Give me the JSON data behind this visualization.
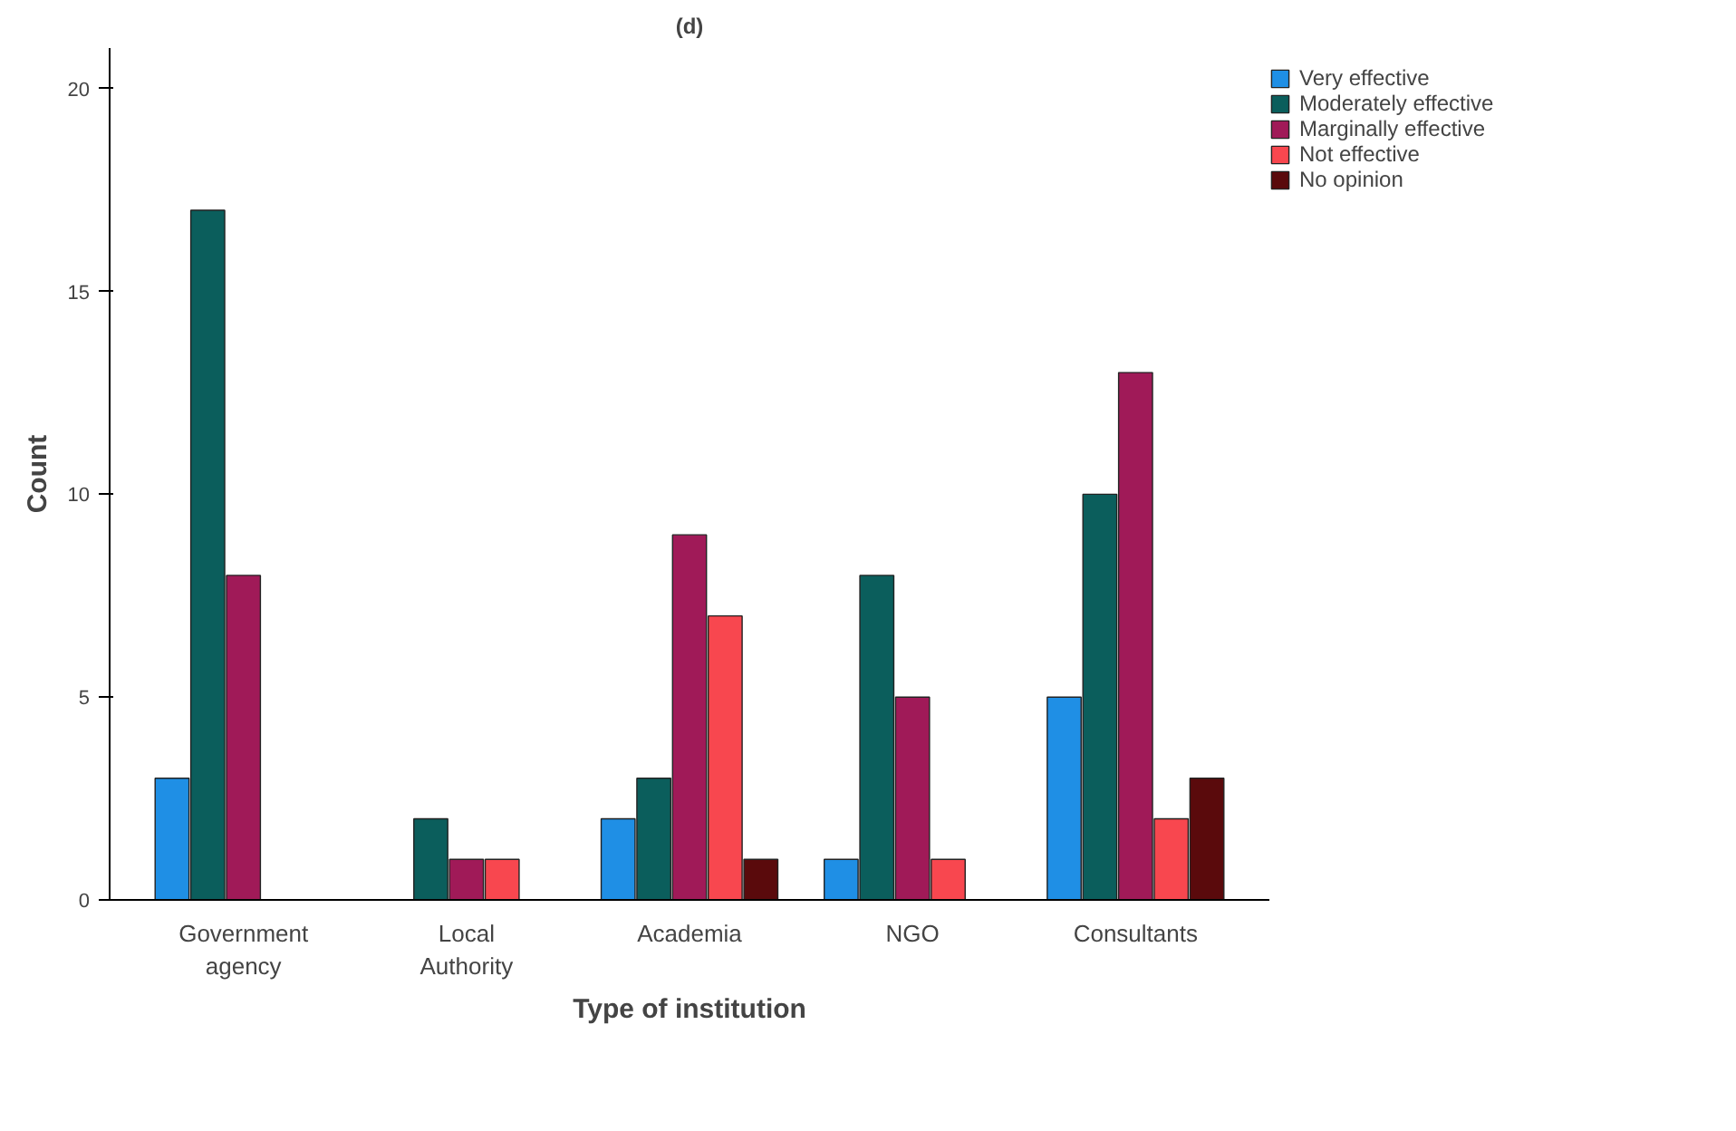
{
  "chart_data": {
    "type": "bar",
    "title": "(d)",
    "xlabel": "Type of institution",
    "ylabel": "Count",
    "categories": [
      "Government agency",
      "Local Authority",
      "Academia",
      "NGO",
      "Consultants"
    ],
    "series": [
      {
        "name": "Very effective",
        "color": "#1f8fe5",
        "values": [
          3,
          null,
          2,
          1,
          5
        ]
      },
      {
        "name": "Moderately effective",
        "color": "#0b5e5c",
        "values": [
          17,
          2,
          3,
          8,
          10
        ]
      },
      {
        "name": "Marginally effective",
        "color": "#a01a58",
        "values": [
          8,
          1,
          9,
          5,
          13
        ]
      },
      {
        "name": "Not effective",
        "color": "#f8474f",
        "values": [
          null,
          1,
          7,
          1,
          2
        ]
      },
      {
        "name": "No opinion",
        "color": "#5a0a0c",
        "values": [
          null,
          null,
          1,
          null,
          3
        ]
      }
    ],
    "ylim": [
      0,
      21
    ],
    "yticks": [
      0,
      5,
      10,
      15,
      20
    ],
    "grid": false,
    "legend": "top right"
  }
}
